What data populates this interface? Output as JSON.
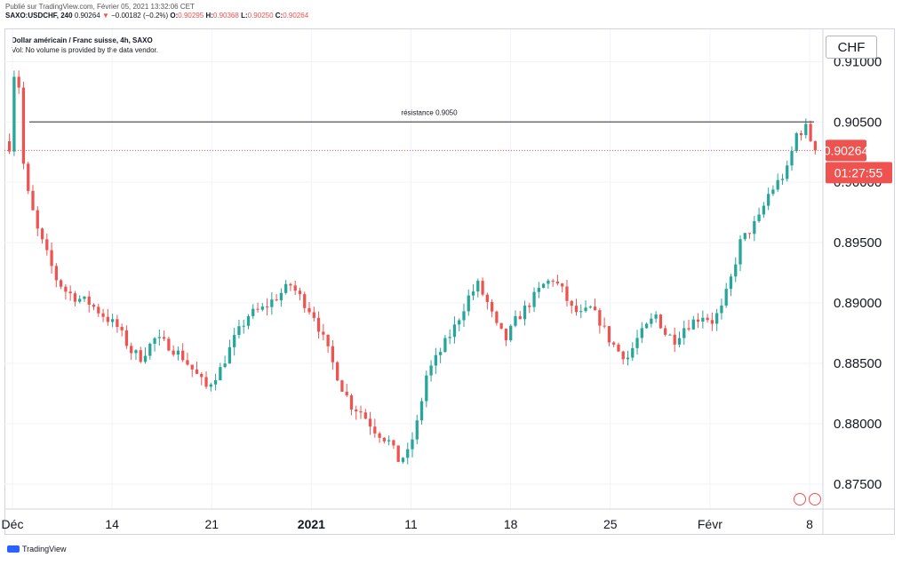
{
  "header": {
    "published": "Publié sur TradingView.com, Février 05, 2021 13:32:06 CET",
    "symbol_line": "SAXO:USDCHF, 240",
    "last": "0.90264",
    "change": "−0.00182 (−0.2%)",
    "open_label": "O:",
    "open": "0.90295",
    "high_label": "H:",
    "high": "0.90368",
    "low_label": "L:",
    "low": "0.90250",
    "close_label": "C:",
    "close": "0.90264"
  },
  "legend": {
    "name": "Dollar américain / Franc suisse, 4h, SAXO",
    "volume_note": "Vol: No volume is provided by the data vendor."
  },
  "currency_button": "CHF",
  "footer": {
    "brand": "TradingView"
  },
  "colors": {
    "up": "#26a69a",
    "down": "#ef5350",
    "price_tag": "#ef5350",
    "resistance": "#555555"
  },
  "chart_data": {
    "type": "candlestick",
    "title": "Dollar américain / Franc suisse, 4h, SAXO",
    "ylim": [
      0.873,
      0.9126
    ],
    "y_ticks": [
      "0.91000",
      "0.90500",
      "0.90000",
      "0.89500",
      "0.89000",
      "0.88500",
      "0.88000",
      "0.87500"
    ],
    "x_ticks": [
      "Déc",
      "14",
      "21",
      "2021",
      "11",
      "18",
      "25",
      "Févr",
      "8"
    ],
    "x_tick_bold": [
      false,
      false,
      false,
      true,
      false,
      false,
      false,
      false,
      false
    ],
    "last_price": "0.90264",
    "countdown": "01:27:55",
    "resistance": {
      "label": "résistance 0.9050",
      "value": 0.905
    },
    "path": [
      [
        0,
        0.903
      ],
      [
        1,
        0.909
      ],
      [
        2,
        0.908
      ],
      [
        3,
        0.9015
      ],
      [
        4,
        0.899
      ],
      [
        6,
        0.896
      ],
      [
        8,
        0.894
      ],
      [
        10,
        0.892
      ],
      [
        12,
        0.891
      ],
      [
        14,
        0.8905
      ],
      [
        17,
        0.89
      ],
      [
        20,
        0.889
      ],
      [
        23,
        0.888
      ],
      [
        26,
        0.886
      ],
      [
        28,
        0.8855
      ],
      [
        31,
        0.887
      ],
      [
        34,
        0.8865
      ],
      [
        37,
        0.8855
      ],
      [
        40,
        0.884
      ],
      [
        42,
        0.883
      ],
      [
        45,
        0.8845
      ],
      [
        48,
        0.887
      ],
      [
        51,
        0.889
      ],
      [
        54,
        0.8895
      ],
      [
        57,
        0.8905
      ],
      [
        60,
        0.8915
      ],
      [
        63,
        0.89
      ],
      [
        65,
        0.889
      ],
      [
        67,
        0.887
      ],
      [
        69,
        0.885
      ],
      [
        71,
        0.883
      ],
      [
        73,
        0.8815
      ],
      [
        75,
        0.881
      ],
      [
        78,
        0.8795
      ],
      [
        81,
        0.8785
      ],
      [
        83,
        0.877
      ],
      [
        85,
        0.8775
      ],
      [
        87,
        0.88
      ],
      [
        89,
        0.884
      ],
      [
        92,
        0.886
      ],
      [
        95,
        0.888
      ],
      [
        98,
        0.8905
      ],
      [
        100,
        0.8915
      ],
      [
        102,
        0.89
      ],
      [
        104,
        0.888
      ],
      [
        106,
        0.887
      ],
      [
        108,
        0.8885
      ],
      [
        110,
        0.8895
      ],
      [
        112,
        0.8905
      ],
      [
        114,
        0.8915
      ],
      [
        116,
        0.892
      ],
      [
        118,
        0.891
      ],
      [
        120,
        0.8895
      ],
      [
        122,
        0.889
      ],
      [
        124,
        0.8895
      ],
      [
        126,
        0.8885
      ],
      [
        128,
        0.887
      ],
      [
        130,
        0.886
      ],
      [
        132,
        0.8855
      ],
      [
        134,
        0.887
      ],
      [
        136,
        0.888
      ],
      [
        138,
        0.889
      ],
      [
        140,
        0.8875
      ],
      [
        142,
        0.887
      ],
      [
        144,
        0.888
      ],
      [
        146,
        0.8885
      ],
      [
        148,
        0.889
      ],
      [
        150,
        0.8885
      ],
      [
        152,
        0.8895
      ],
      [
        154,
        0.892
      ],
      [
        156,
        0.895
      ],
      [
        158,
        0.896
      ],
      [
        160,
        0.897
      ],
      [
        162,
        0.899
      ],
      [
        164,
        0.9
      ],
      [
        166,
        0.901
      ],
      [
        168,
        0.904
      ],
      [
        170,
        0.9045
      ],
      [
        172,
        0.9026
      ]
    ]
  }
}
